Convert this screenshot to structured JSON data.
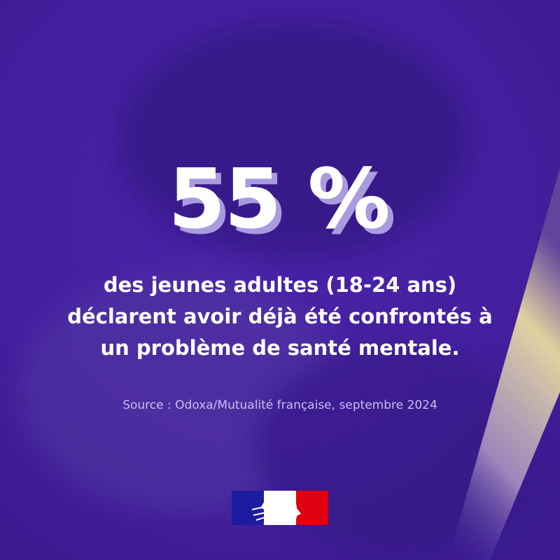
{
  "headline": "55 %",
  "body": [
    "des jeunes adultes (18-24 ans)",
    "déclarent avoir déjà été confrontés à",
    "un problème de santé mentale."
  ],
  "source": "Source : Odoxa/Mutualité française, septembre 2024"
}
